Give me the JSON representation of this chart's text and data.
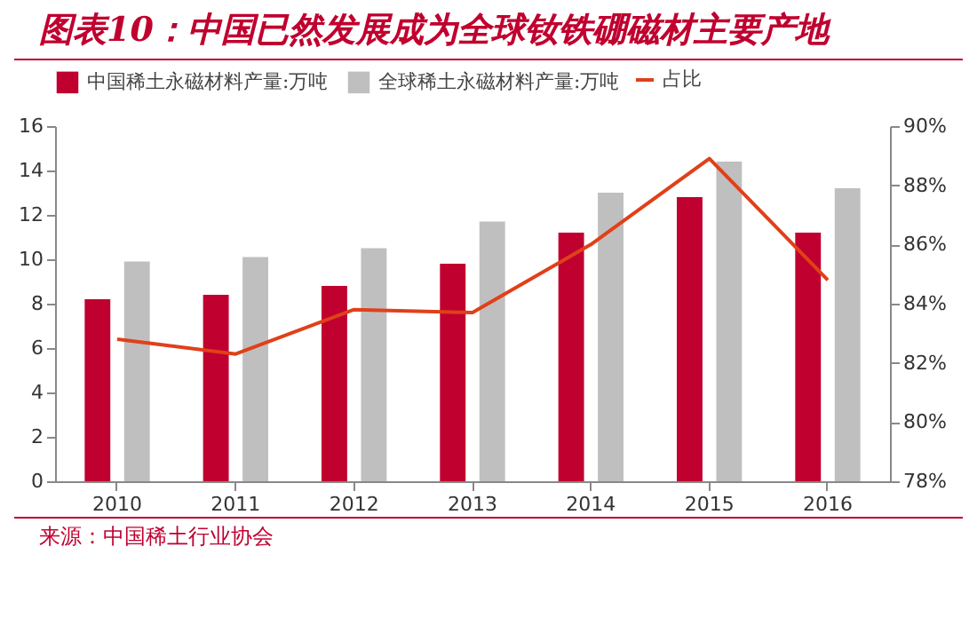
{
  "chart_data": {
    "type": "bar",
    "title": "图表10：中国已然发展成为全球钕铁硼磁材主要产地",
    "categories": [
      "2010",
      "2011",
      "2012",
      "2013",
      "2014",
      "2015",
      "2016"
    ],
    "series": [
      {
        "name": "中国稀土永磁材料产量:万吨",
        "color": "#c0002f",
        "values": [
          8.2,
          8.4,
          8.8,
          9.8,
          11.2,
          12.8,
          11.2
        ]
      },
      {
        "name": "全球稀土永磁材料产量:万吨",
        "color": "#bfbfbf",
        "values": [
          9.9,
          10.1,
          10.5,
          11.7,
          13.0,
          14.4,
          13.2
        ]
      },
      {
        "name": "占比",
        "type": "line",
        "axis": "y2",
        "color": "#e0401a",
        "values": [
          82.8,
          82.3,
          83.8,
          83.7,
          86.0,
          88.9,
          84.8
        ]
      }
    ],
    "ylim": [
      0,
      16
    ],
    "yticks": [
      0,
      2,
      4,
      6,
      8,
      10,
      12,
      14,
      16
    ],
    "y2lim": [
      78,
      90
    ],
    "y2ticks": [
      {
        "value": 78,
        "label": "78%"
      },
      {
        "value": 80,
        "label": "80%"
      },
      {
        "value": 82,
        "label": "82%"
      },
      {
        "value": 84,
        "label": "84%"
      },
      {
        "value": 86,
        "label": "86%"
      },
      {
        "value": 88,
        "label": "88%"
      },
      {
        "value": 90,
        "label": "90%"
      }
    ],
    "legend": "top",
    "grid": false,
    "annotations": [
      "来源：中国稀土行业协会"
    ]
  }
}
